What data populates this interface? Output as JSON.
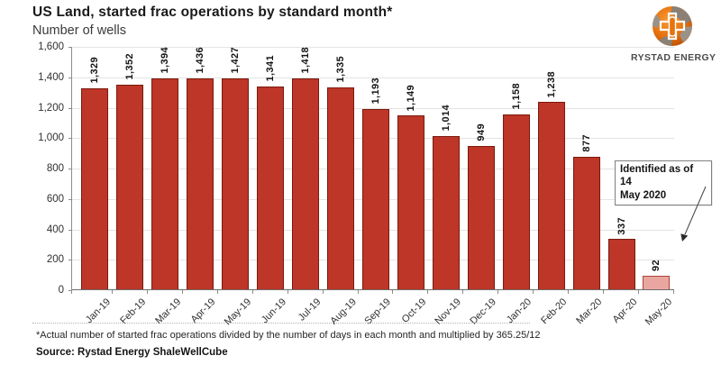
{
  "header": {
    "title": "US Land, started frac operations by standard month*",
    "subtitle": "Number of wells"
  },
  "logo": {
    "brand": "RYSTAD ENERGY",
    "globe_icon": "globe-icon"
  },
  "chart_data": {
    "type": "bar",
    "title": "US Land, started frac operations by standard month*",
    "xlabel": "",
    "ylabel": "Number of wells",
    "categories": [
      "Jan-19",
      "Feb-19",
      "Mar-19",
      "Apr-19",
      "May-19",
      "Jun-19",
      "Jul-19",
      "Aug-19",
      "Sep-19",
      "Oct-19",
      "Nov-19",
      "Dec-19",
      "Jan-20",
      "Feb-20",
      "Mar-20",
      "Apr-20",
      "May-20"
    ],
    "values": [
      1329,
      1352,
      1394,
      1436,
      1427,
      1341,
      1418,
      1335,
      1193,
      1149,
      1014,
      949,
      1158,
      1238,
      877,
      337,
      92
    ],
    "value_labels": [
      "1,329",
      "1,352",
      "1,394",
      "1,436",
      "1,427",
      "1,341",
      "1,418",
      "1,335",
      "1,193",
      "1,149",
      "1,014",
      "949",
      "1,158",
      "1,238",
      "877",
      "337",
      "92"
    ],
    "ylim": [
      0,
      1600
    ],
    "ytick_step": 200,
    "grid": true,
    "legend": false,
    "highlight_index": 16,
    "annotation": {
      "line1": "Identified as of 14",
      "line2": "May 2020"
    }
  },
  "yaxis": {
    "ticks": [
      {
        "value": 0,
        "label": "0"
      },
      {
        "value": 200,
        "label": "200"
      },
      {
        "value": 400,
        "label": "400"
      },
      {
        "value": 600,
        "label": "600"
      },
      {
        "value": 800,
        "label": "800"
      },
      {
        "value": 1000,
        "label": "1,000"
      },
      {
        "value": 1200,
        "label": "1,200"
      },
      {
        "value": 1400,
        "label": "1,400"
      },
      {
        "value": 1600,
        "label": "1,600"
      }
    ]
  },
  "colors": {
    "bar": "#bd3627",
    "bar_border": "#7a1a0e",
    "highlight": "#e9a6a1",
    "highlight_border": "#ad4535",
    "grid": "#e3e3e3",
    "logo_orange": "#e8720e",
    "logo_gray": "#8a8076"
  },
  "footer": {
    "note": "*Actual number of started frac operations divided by the number of days in each month and multiplied by 365.25/12",
    "source": "Source: Rystad Energy ShaleWellCube"
  }
}
